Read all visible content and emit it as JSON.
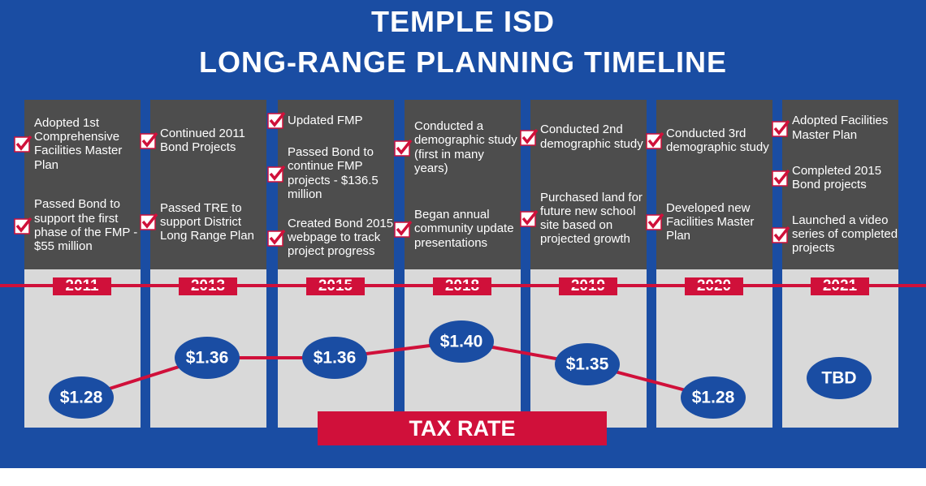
{
  "title": [
    "TEMPLE ISD",
    "LONG-RANGE PLANNING TIMELINE"
  ],
  "columns": [
    {
      "year": "2011",
      "items": [
        "Adopted 1st Comprehensive Facilities Master Plan",
        "Passed  Bond to support the first phase of the FMP - $55 million"
      ],
      "tax_rate": "$1.28"
    },
    {
      "year": "2013",
      "items": [
        "Continued 2011 Bond Projects",
        "Passed TRE to support District Long Range Plan"
      ],
      "tax_rate": "$1.36"
    },
    {
      "year": "2015",
      "items": [
        "Updated FMP",
        "Passed Bond to continue FMP projects - $136.5 million",
        "Created Bond 2015 webpage to track project progress"
      ],
      "tax_rate": "$1.36"
    },
    {
      "year": "2018",
      "items": [
        "Conducted a demographic study (first in many years)",
        "Began annual community update presentations"
      ],
      "tax_rate": "$1.40"
    },
    {
      "year": "2019",
      "items": [
        "Conducted 2nd demographic study",
        "Purchased land for future new school site based on projected growth"
      ],
      "tax_rate": "$1.35"
    },
    {
      "year": "2020",
      "items": [
        "Conducted 3rd demographic study",
        "Developed new Facilities Master Plan"
      ],
      "tax_rate": "$1.28"
    },
    {
      "year": "2021",
      "items": [
        "Adopted Facilities Master Plan",
        "Completed 2015 Bond projects",
        "Launched a video series of completed projects"
      ],
      "tax_rate": "TBD"
    }
  ],
  "tax_rate_label": "TAX RATE"
}
